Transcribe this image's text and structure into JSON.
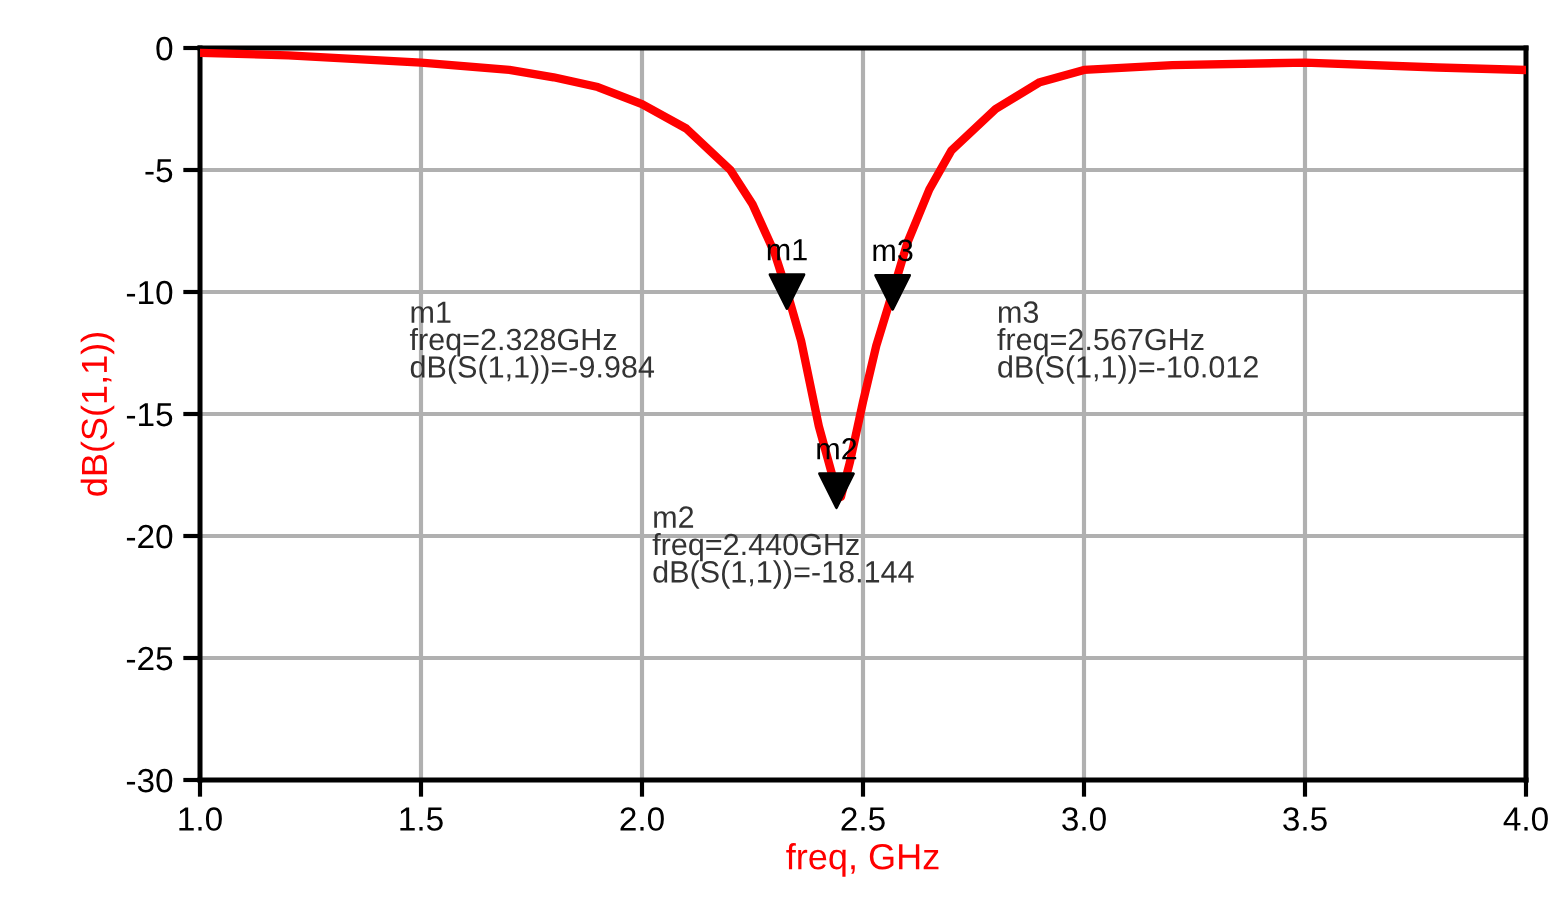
{
  "chart_data": {
    "type": "line",
    "xlabel": "freq, GHz",
    "ylabel": "dB(S(1,1))",
    "series": [
      {
        "color": "#ff0000",
        "x": [
          1.0,
          1.2,
          1.5,
          1.7,
          1.8,
          1.9,
          2.0,
          2.1,
          2.2,
          2.25,
          2.3,
          2.328,
          2.36,
          2.4,
          2.44,
          2.45,
          2.47,
          2.5,
          2.53,
          2.567,
          2.6,
          2.65,
          2.7,
          2.8,
          2.9,
          3.0,
          3.2,
          3.5,
          3.8,
          4.0
        ],
        "values": [
          -0.2,
          -0.3,
          -0.6,
          -0.9,
          -1.2,
          -1.6,
          -2.3,
          -3.3,
          -5.0,
          -6.4,
          -8.4,
          -9.984,
          -12.0,
          -15.5,
          -18.144,
          -18.4,
          -17.0,
          -14.5,
          -12.2,
          -10.012,
          -8.0,
          -5.8,
          -4.2,
          -2.5,
          -1.4,
          -0.9,
          -0.7,
          -0.6,
          -0.8,
          -0.9
        ]
      },
      {
        "type": "scatter",
        "marker": "triangle",
        "color": "#000000",
        "x": [
          2.328,
          2.44,
          2.567
        ],
        "values": [
          -9.984,
          -18.144,
          -10.012
        ],
        "value_labels": [
          "m1",
          "m2",
          "m3"
        ]
      }
    ],
    "annotations": [
      "m1\nfreq=2.328GHz\ndB(S(1,1))=-9.984",
      "m2\nfreq=2.440GHz\ndB(S(1,1))=-18.144",
      "m3\nfreq=2.567GHz\ndB(S(1,1))=-10.012"
    ],
    "xlim": [
      1.0,
      4.0
    ],
    "xticks": [
      {
        "value": 1.0,
        "label": "1.0"
      },
      {
        "value": 1.5,
        "label": "1.5"
      },
      {
        "value": 2.0,
        "label": "2.0"
      },
      {
        "value": 2.5,
        "label": "2.5"
      },
      {
        "value": 3.0,
        "label": "3.0"
      },
      {
        "value": 3.5,
        "label": "3.5"
      },
      {
        "value": 4.0,
        "label": "4.0"
      }
    ],
    "ylim": [
      -30,
      0
    ],
    "yticks": [
      -30,
      -25,
      -20,
      -15,
      -10,
      -5,
      0
    ],
    "grid": true,
    "legend": false
  }
}
